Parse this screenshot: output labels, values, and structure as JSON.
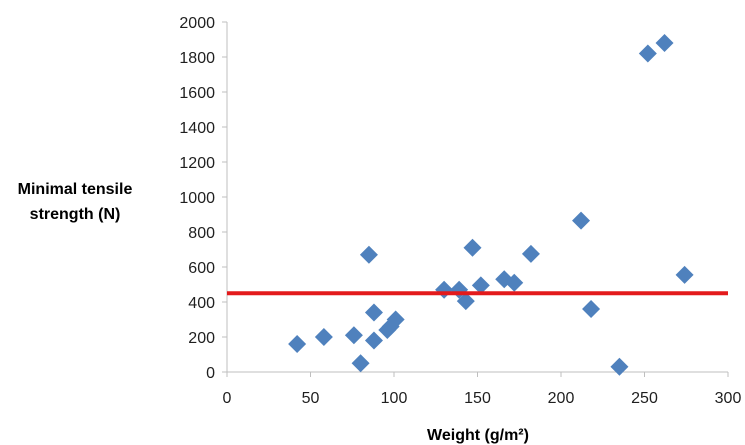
{
  "chart_data": {
    "type": "scatter",
    "title": "",
    "xlabel": "Weight (g/m²)",
    "ylabel_lines": [
      "Minimal tensile",
      "strength (N)"
    ],
    "xlim": [
      0,
      300
    ],
    "ylim": [
      0,
      2000
    ],
    "x_ticks": [
      0,
      50,
      100,
      150,
      200,
      250,
      300
    ],
    "y_ticks": [
      0,
      200,
      400,
      600,
      800,
      1000,
      1200,
      1400,
      1600,
      1800,
      2000
    ],
    "grid": false,
    "marker_color": "#4f81bd",
    "reference_line": {
      "y": 450,
      "color": "#e31a1c"
    },
    "series": [
      {
        "points": [
          {
            "x": 42,
            "y": 160
          },
          {
            "x": 58,
            "y": 200
          },
          {
            "x": 76,
            "y": 210
          },
          {
            "x": 80,
            "y": 50
          },
          {
            "x": 85,
            "y": 670
          },
          {
            "x": 88,
            "y": 340
          },
          {
            "x": 88,
            "y": 180
          },
          {
            "x": 96,
            "y": 240
          },
          {
            "x": 98,
            "y": 260
          },
          {
            "x": 101,
            "y": 300
          },
          {
            "x": 130,
            "y": 470
          },
          {
            "x": 139,
            "y": 470
          },
          {
            "x": 143,
            "y": 405
          },
          {
            "x": 147,
            "y": 710
          },
          {
            "x": 152,
            "y": 495
          },
          {
            "x": 166,
            "y": 530
          },
          {
            "x": 172,
            "y": 510
          },
          {
            "x": 182,
            "y": 675
          },
          {
            "x": 212,
            "y": 865
          },
          {
            "x": 218,
            "y": 360
          },
          {
            "x": 235,
            "y": 30
          },
          {
            "x": 252,
            "y": 1820
          },
          {
            "x": 262,
            "y": 1880
          },
          {
            "x": 274,
            "y": 555
          }
        ]
      }
    ]
  }
}
